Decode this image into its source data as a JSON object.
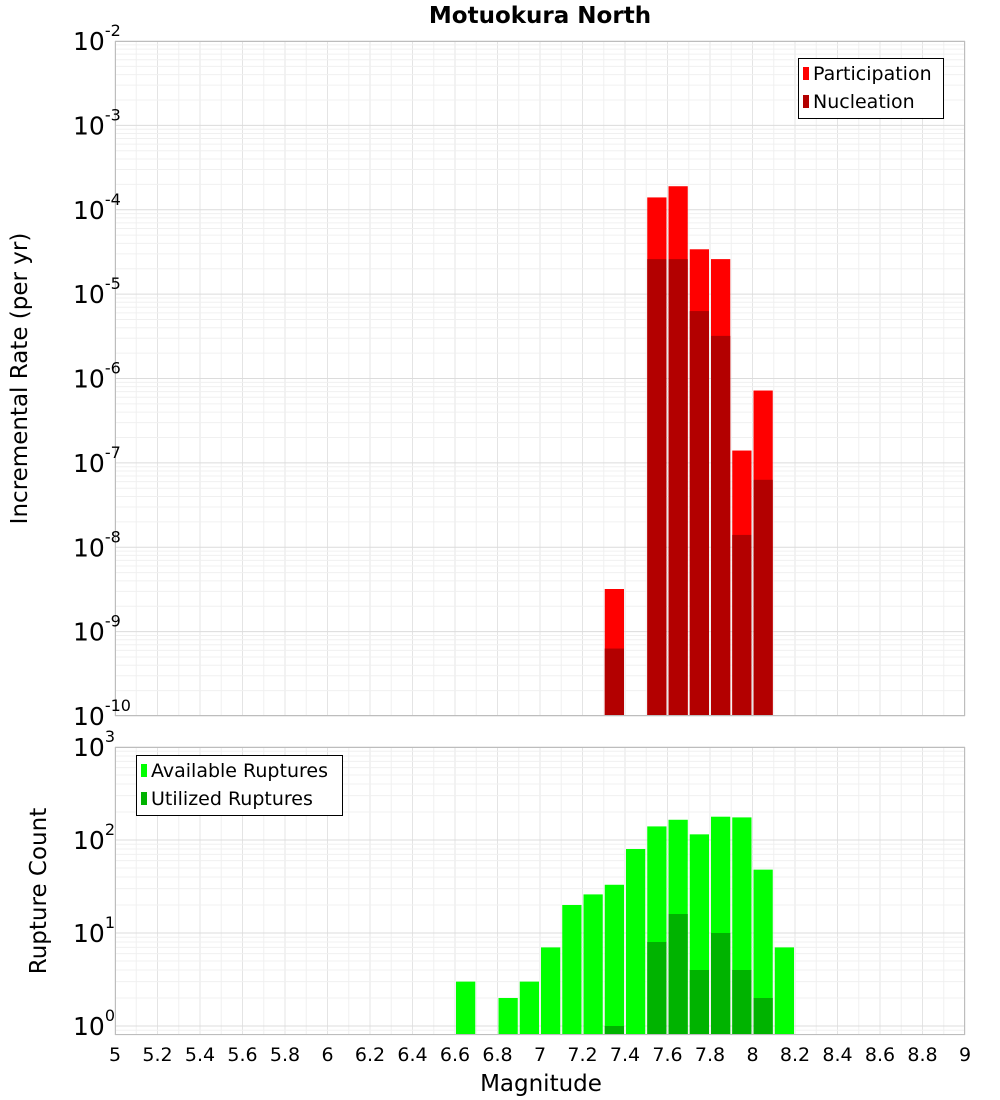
{
  "chart_data": [
    {
      "type": "bar",
      "title": "Motuokura North",
      "xlabel": "",
      "ylabel": "Incremental Rate (per yr)",
      "yscale": "log",
      "xlim": [
        5,
        9
      ],
      "ylim": [
        1e-10,
        0.01
      ],
      "y_ticks": [
        {
          "base": "10",
          "exp": "-10"
        },
        {
          "base": "10",
          "exp": "-9"
        },
        {
          "base": "10",
          "exp": "-8"
        },
        {
          "base": "10",
          "exp": "-7"
        },
        {
          "base": "10",
          "exp": "-6"
        },
        {
          "base": "10",
          "exp": "-5"
        },
        {
          "base": "10",
          "exp": "-4"
        },
        {
          "base": "10",
          "exp": "-3"
        },
        {
          "base": "10",
          "exp": "-2"
        }
      ],
      "grid": true,
      "legend_position": "top-right",
      "series": [
        {
          "name": "Participation",
          "color": "#ff0000",
          "x": [
            7.35,
            7.55,
            7.65,
            7.75,
            7.85,
            7.95,
            8.05
          ],
          "values": [
            3.2e-09,
            0.00014,
            0.00019,
            3.4e-05,
            2.6e-05,
            1.4e-07,
            7.2e-07
          ]
        },
        {
          "name": "Nucleation",
          "color": "#b30000",
          "x": [
            7.35,
            7.55,
            7.65,
            7.75,
            7.85,
            7.95,
            8.05
          ],
          "values": [
            6.3e-10,
            2.6e-05,
            2.6e-05,
            6.3e-06,
            3.2e-06,
            1.4e-08,
            6.3e-08
          ]
        }
      ]
    },
    {
      "type": "bar",
      "title": "",
      "xlabel": "Magnitude",
      "ylabel": "Rupture Count",
      "yscale": "log",
      "xlim": [
        5,
        9
      ],
      "ylim": [
        0.8,
        1000
      ],
      "x_ticks": [
        "5",
        "5.2",
        "5.4",
        "5.6",
        "5.8",
        "6",
        "6.2",
        "6.4",
        "6.6",
        "6.8",
        "7",
        "7.2",
        "7.4",
        "7.6",
        "7.8",
        "8",
        "8.2",
        "8.4",
        "8.6",
        "8.8",
        "9"
      ],
      "y_ticks": [
        {
          "base": "10",
          "exp": "0"
        },
        {
          "base": "10",
          "exp": "1"
        },
        {
          "base": "10",
          "exp": "2"
        },
        {
          "base": "10",
          "exp": "3"
        }
      ],
      "grid": true,
      "legend_position": "top-left",
      "series": [
        {
          "name": "Available Ruptures",
          "color": "#00ff00",
          "x": [
            6.65,
            6.85,
            6.95,
            7.05,
            7.15,
            7.25,
            7.35,
            7.45,
            7.55,
            7.65,
            7.75,
            7.85,
            7.95,
            8.05,
            8.15
          ],
          "values": [
            3,
            2,
            3,
            7,
            20,
            26,
            33,
            80,
            140,
            165,
            115,
            178,
            175,
            48,
            7
          ]
        },
        {
          "name": "Utilized Ruptures",
          "color": "#00b300",
          "x": [
            7.35,
            7.55,
            7.65,
            7.75,
            7.85,
            7.95,
            8.05
          ],
          "values": [
            1,
            8,
            16,
            4,
            10,
            4,
            2
          ]
        }
      ]
    }
  ]
}
